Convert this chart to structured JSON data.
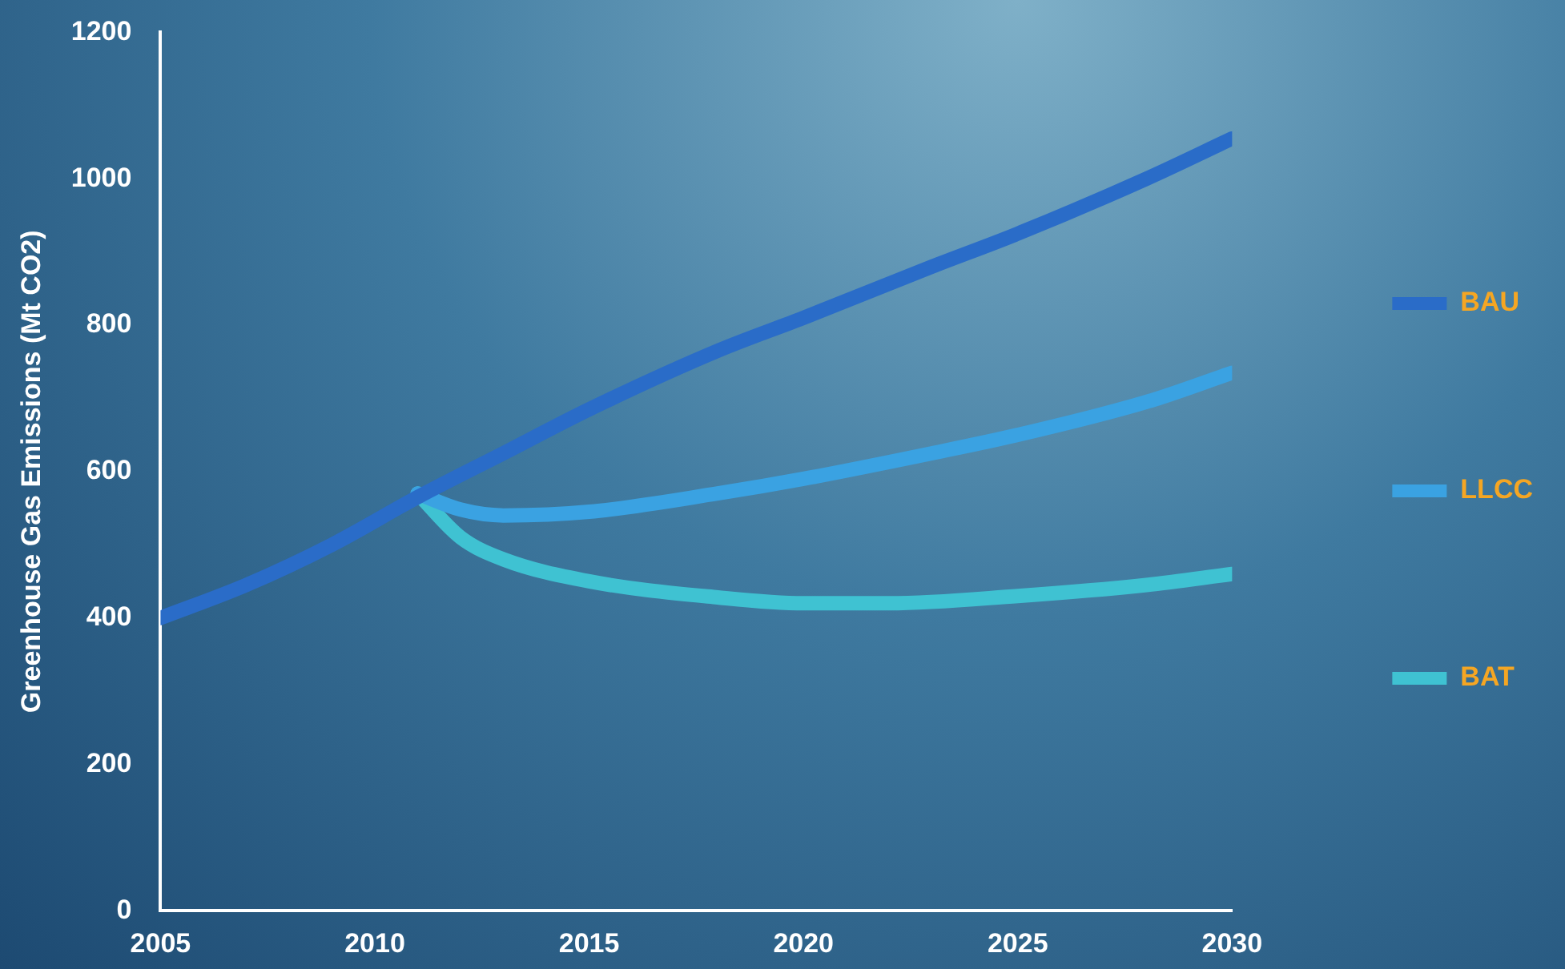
{
  "chart_data": {
    "type": "line",
    "ylabel": "Greenhouse Gas Emissions (Mt CO2)",
    "xlim": [
      2005,
      2030
    ],
    "xticks": [
      2005,
      2010,
      2015,
      2020,
      2025,
      2030
    ],
    "ylim": [
      0,
      1200
    ],
    "yticks": [
      0,
      200,
      400,
      600,
      800,
      1000,
      1200
    ],
    "grid": false,
    "legend": "right",
    "marker": "none",
    "line_style": "solid",
    "series": [
      {
        "name": "BAU",
        "color": "#2a6cc8",
        "x": [
          2005,
          2007,
          2009,
          2011,
          2013,
          2015,
          2018,
          2020,
          2023,
          2025,
          2028,
          2030
        ],
        "values": [
          400,
          445,
          500,
          565,
          625,
          685,
          765,
          810,
          880,
          925,
          1000,
          1055
        ]
      },
      {
        "name": "LLCC",
        "color": "#3aa2e2",
        "x": [
          2011,
          2012,
          2013,
          2015,
          2018,
          2020,
          2023,
          2025,
          2028,
          2030
        ],
        "values": [
          570,
          548,
          540,
          545,
          570,
          590,
          625,
          650,
          695,
          735
        ]
      },
      {
        "name": "BAT",
        "color": "#3fc2d2",
        "x": [
          2011,
          2012,
          2013,
          2015,
          2018,
          2020,
          2022,
          2025,
          2028,
          2030
        ],
        "values": [
          570,
          510,
          480,
          450,
          428,
          420,
          420,
          430,
          445,
          460
        ]
      }
    ]
  }
}
